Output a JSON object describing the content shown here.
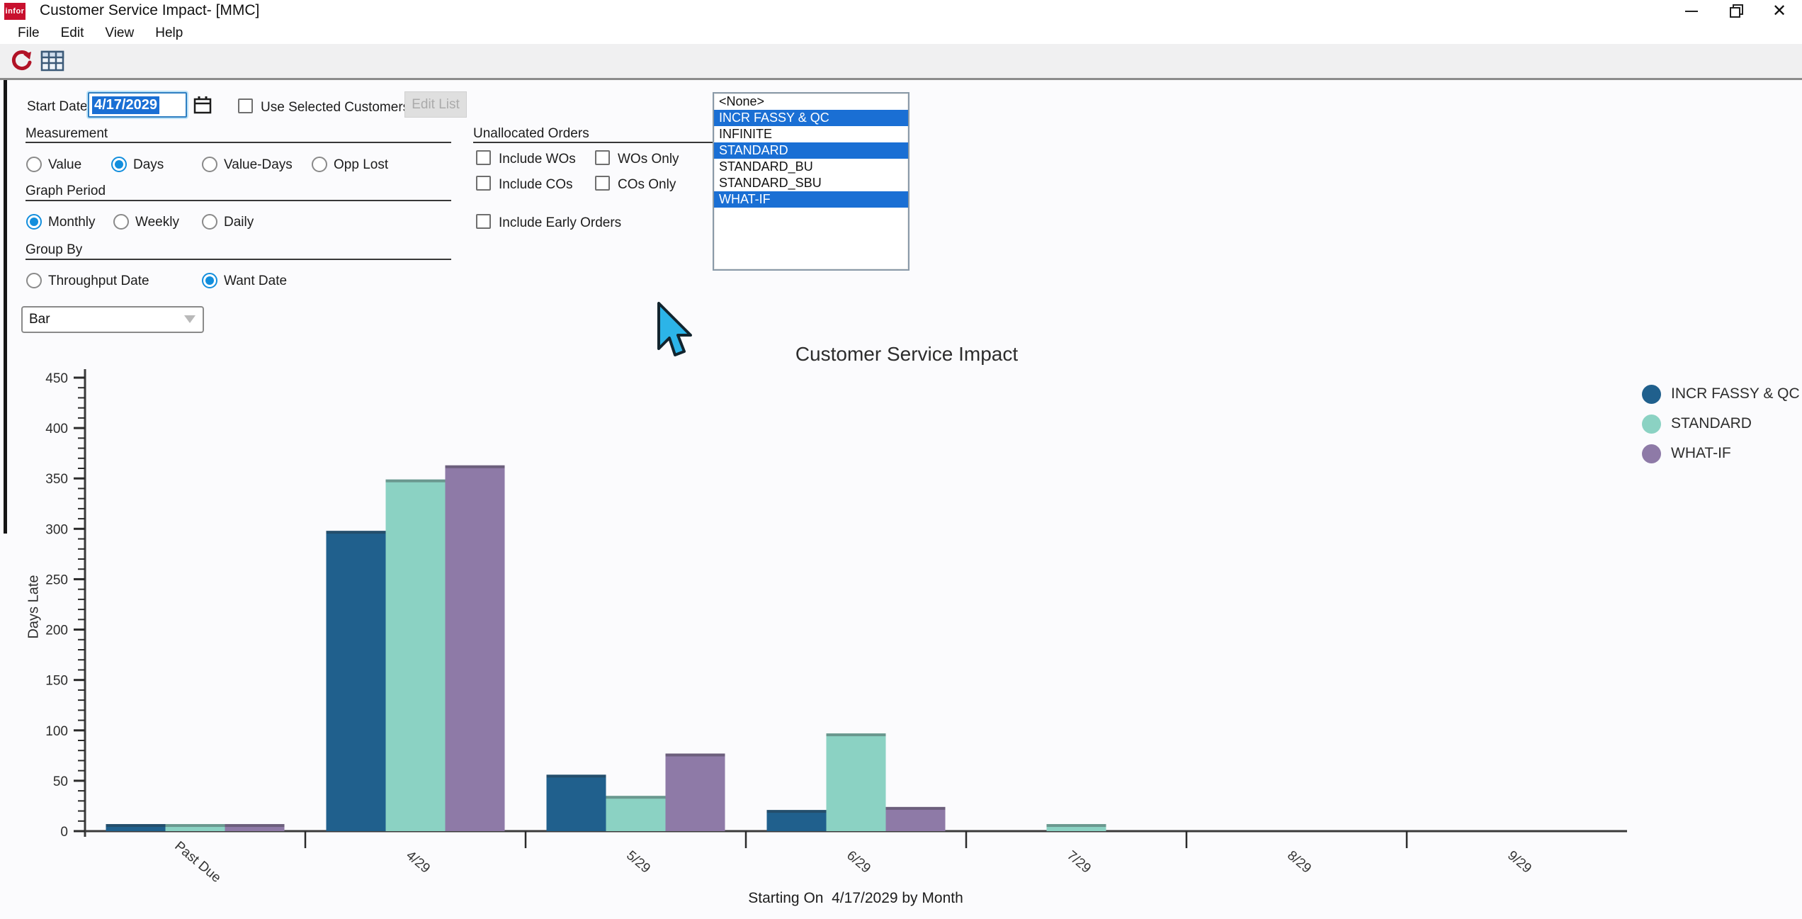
{
  "colors": {
    "selection": "#1a6fd4",
    "accent": "#128edd"
  },
  "window": {
    "logo_text": "infor",
    "title": "Customer Service Impact- [MMC]"
  },
  "menu": {
    "items": [
      "File",
      "Edit",
      "View",
      "Help"
    ]
  },
  "toolbar": {
    "icons": [
      "refresh-icon",
      "grid-icon"
    ]
  },
  "form": {
    "start_date": {
      "label": "Start Date",
      "value": "4/17/2029"
    },
    "use_selected_customers": {
      "label": "Use Selected Customers",
      "checked": false
    },
    "edit_list": {
      "label": "Edit List",
      "enabled": false
    },
    "measurement": {
      "label": "Measurement",
      "options": [
        {
          "label": "Value",
          "selected": false
        },
        {
          "label": "Days",
          "selected": true
        },
        {
          "label": "Value-Days",
          "selected": false
        },
        {
          "label": "Opp Lost",
          "selected": false
        }
      ]
    },
    "graph_period": {
      "label": "Graph Period",
      "options": [
        {
          "label": "Monthly",
          "selected": true
        },
        {
          "label": "Weekly",
          "selected": false
        },
        {
          "label": "Daily",
          "selected": false
        }
      ]
    },
    "group_by": {
      "label": "Group By",
      "options": [
        {
          "label": "Throughput Date",
          "selected": false
        },
        {
          "label": "Want Date",
          "selected": true
        }
      ]
    },
    "chart_type_select": {
      "value": "Bar"
    },
    "unallocated_orders": {
      "label": "Unallocated Orders",
      "checkboxes": [
        {
          "label": "Include WOs",
          "checked": false
        },
        {
          "label": "WOs Only",
          "checked": false
        },
        {
          "label": "Include COs",
          "checked": false
        },
        {
          "label": "COs Only",
          "checked": false
        },
        {
          "label": "Include Early Orders",
          "checked": false
        }
      ]
    },
    "scenario_list": {
      "items": [
        {
          "label": "<None>",
          "selected": false
        },
        {
          "label": "INCR FASSY & QC",
          "selected": true
        },
        {
          "label": "INFINITE",
          "selected": false
        },
        {
          "label": "STANDARD",
          "selected": true
        },
        {
          "label": "STANDARD_BU",
          "selected": false
        },
        {
          "label": "STANDARD_SBU",
          "selected": false
        },
        {
          "label": "WHAT-IF",
          "selected": true
        }
      ]
    }
  },
  "chart_data": {
    "type": "bar",
    "title": "Customer Service Impact",
    "ylabel": "Days Late",
    "xlabel": "Starting On  4/17/2029 by Month",
    "ylim": [
      0,
      450
    ],
    "ytick_step": 50,
    "ytick_minor_step": 10,
    "grid": false,
    "legend_position": "right",
    "categories": [
      "Past Due",
      "4/29",
      "5/29",
      "6/29",
      "7/29",
      "8/29",
      "9/29"
    ],
    "series": [
      {
        "name": "INCR FASSY & QC",
        "color": "#20608d",
        "values": [
          7,
          298,
          56,
          21,
          0,
          0,
          0
        ]
      },
      {
        "name": "STANDARD",
        "color": "#8bd2c3",
        "values": [
          7,
          349,
          35,
          97,
          7,
          0,
          0
        ]
      },
      {
        "name": "WHAT-IF",
        "color": "#8e7aa7",
        "values": [
          7,
          363,
          77,
          24,
          0,
          0,
          0
        ]
      }
    ]
  }
}
